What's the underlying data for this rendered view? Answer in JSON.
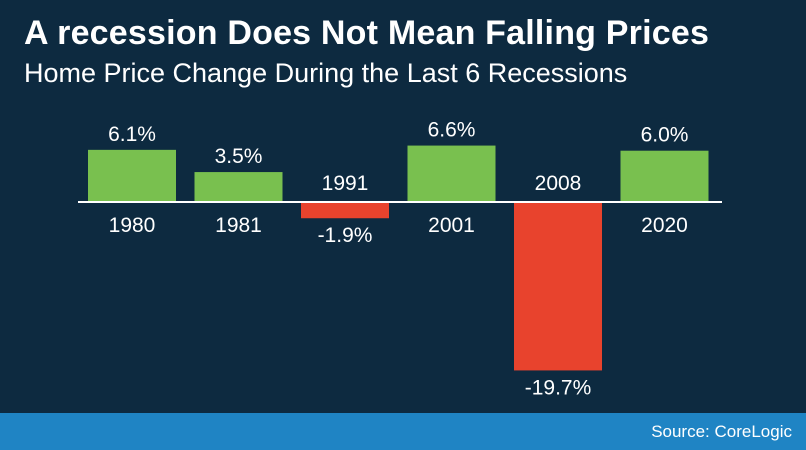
{
  "colors": {
    "background": "#0d2a40",
    "positive": "#79c04f",
    "negative": "#e8432d",
    "footer": "#1f84c4",
    "text": "#ffffff",
    "axis": "#ffffff"
  },
  "source": "Source: CoreLogic",
  "chart_data": {
    "type": "bar",
    "title": "A recession Does Not Mean Falling Prices",
    "subtitle": "Home Price Change During the Last 6 Recessions",
    "xlabel": "",
    "ylabel": "",
    "categories": [
      "1980",
      "1981",
      "1991",
      "2001",
      "2008",
      "2020"
    ],
    "values": [
      6.1,
      3.5,
      -1.9,
      6.6,
      -19.7,
      6.0
    ],
    "value_labels": [
      "6.1%",
      "3.5%",
      "-1.9%",
      "6.6%",
      "-19.7%",
      "6.0%"
    ],
    "ylim": [
      -19.7,
      6.6
    ],
    "grid": false,
    "legend": "none"
  }
}
